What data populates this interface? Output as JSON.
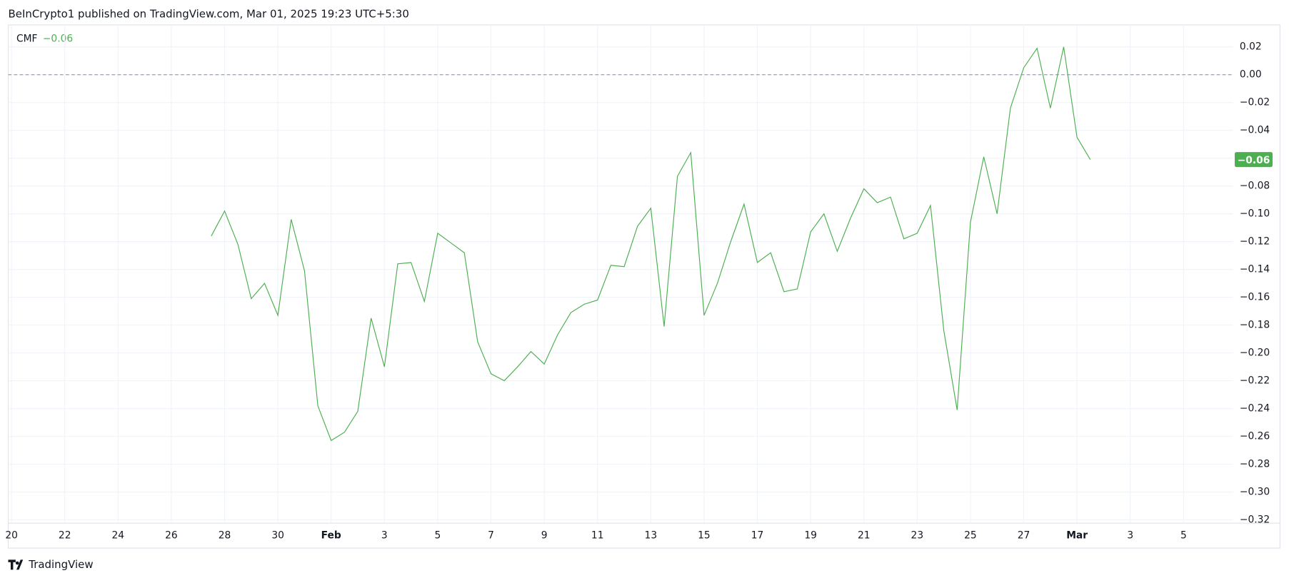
{
  "header": "BeInCrypto1 published on TradingView.com, Mar 01, 2025 19:23 UTC+5:30",
  "footer": "TradingView",
  "chart_data": {
    "type": "line",
    "indicator": "CMF",
    "current_value_label": "−0.06",
    "color": "#4caf50",
    "hline": 0,
    "grid": true,
    "x": [
      27.5,
      28,
      28.5,
      29,
      29.5,
      30,
      30.5,
      31,
      31.5,
      32,
      32.5,
      33,
      33.5,
      34,
      34.5,
      35,
      35.5,
      36,
      36.5,
      37,
      37.5,
      38,
      38.5,
      39,
      39.5,
      40,
      40.5,
      41,
      41.5,
      42,
      42.5,
      43,
      43.5,
      44,
      44.5,
      45,
      45.5,
      46,
      46.5,
      47,
      47.5,
      48,
      48.5,
      49,
      49.5,
      50,
      50.5,
      51,
      51.5,
      52,
      52.5,
      53,
      53.5,
      54,
      54.5,
      55,
      55.5,
      56,
      56.5,
      57,
      57.5,
      58,
      58.5,
      59,
      59.5,
      60,
      60.5
    ],
    "values": [
      -0.116,
      -0.098,
      -0.122,
      -0.161,
      -0.15,
      -0.173,
      -0.104,
      -0.141,
      -0.238,
      -0.263,
      -0.257,
      -0.242,
      -0.175,
      -0.21,
      -0.136,
      -0.135,
      -0.163,
      -0.114,
      -0.121,
      -0.128,
      -0.192,
      -0.215,
      -0.22,
      -0.21,
      -0.199,
      -0.208,
      -0.187,
      -0.171,
      -0.165,
      -0.162,
      -0.137,
      -0.138,
      -0.109,
      -0.096,
      -0.181,
      -0.073,
      -0.056,
      -0.173,
      -0.15,
      -0.12,
      -0.093,
      -0.135,
      -0.128,
      -0.156,
      -0.154,
      -0.113,
      -0.1,
      -0.127,
      -0.103,
      -0.082,
      -0.092,
      -0.088,
      -0.118,
      -0.114,
      -0.094,
      -0.184,
      -0.241,
      -0.106,
      -0.059,
      -0.1,
      -0.024,
      0.005,
      0.019,
      -0.024,
      0.02,
      -0.045,
      -0.061
    ],
    "xlim": [
      19.877,
      65.86
    ],
    "xticks": [
      20,
      22,
      24,
      26,
      28,
      30,
      {
        "value": 32,
        "label": "Feb"
      },
      {
        "value": 34,
        "label": "3"
      },
      {
        "value": 36,
        "label": "5"
      },
      {
        "value": 38,
        "label": "7"
      },
      {
        "value": 40,
        "label": "9"
      },
      {
        "value": 42,
        "label": "11"
      },
      {
        "value": 44,
        "label": "13"
      },
      {
        "value": 46,
        "label": "15"
      },
      {
        "value": 48,
        "label": "17"
      },
      {
        "value": 50,
        "label": "19"
      },
      {
        "value": 52,
        "label": "21"
      },
      {
        "value": 54,
        "label": "23"
      },
      {
        "value": 56,
        "label": "25"
      },
      {
        "value": 58,
        "label": "27"
      },
      {
        "value": 60,
        "label": "Mar"
      },
      {
        "value": 62,
        "label": "3"
      },
      {
        "value": 64,
        "label": "5"
      }
    ],
    "ylim": [
      -0.3224,
      0.0358
    ],
    "yticks": [
      0.02,
      {
        "value": 0,
        "label": "0.00"
      },
      {
        "value": -0.02,
        "label": "−0.02"
      },
      {
        "value": -0.04,
        "label": "−0.04"
      },
      {
        "value": -0.06,
        "label": "−0.06"
      },
      {
        "value": -0.08,
        "label": "−0.08"
      },
      {
        "value": -0.1,
        "label": "−0.10"
      },
      {
        "value": -0.12,
        "label": "−0.12"
      },
      {
        "value": -0.14,
        "label": "−0.14"
      },
      {
        "value": -0.16,
        "label": "−0.16"
      },
      {
        "value": -0.18,
        "label": "−0.18"
      },
      {
        "value": -0.2,
        "label": "−0.20"
      },
      {
        "value": -0.22,
        "label": "−0.22"
      },
      {
        "value": -0.24,
        "label": "−0.24"
      },
      {
        "value": -0.26,
        "label": "−0.26"
      },
      {
        "value": -0.28,
        "label": "−0.28"
      },
      {
        "value": -0.3,
        "label": "−0.30"
      },
      {
        "value": -0.32,
        "label": "−0.32"
      }
    ]
  }
}
